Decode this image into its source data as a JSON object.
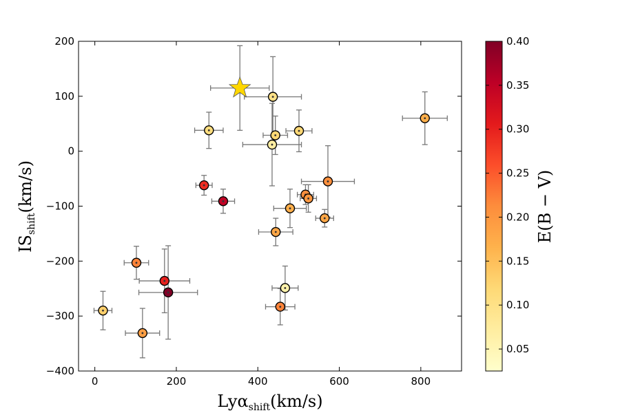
{
  "chart_data": {
    "type": "scatter",
    "title": "",
    "xlabel": {
      "main": "Lyα",
      "sub": "shift",
      "unit": "(km/s)"
    },
    "ylabel": {
      "main": "IS",
      "sub": "shift",
      "unit": "(km/s)"
    },
    "xlim": [
      -40,
      900
    ],
    "ylim": [
      -400,
      200
    ],
    "xticks": [
      0,
      200,
      400,
      600,
      800
    ],
    "yticks": [
      -400,
      -300,
      -200,
      -100,
      0,
      100,
      200
    ],
    "xtick_labels": [
      "0",
      "200",
      "400",
      "600",
      "800"
    ],
    "ytick_labels": [
      "−400",
      "−300",
      "−200",
      "−100",
      "0",
      "100",
      "200"
    ],
    "colorbar": {
      "label": "E(B − V)",
      "range": [
        0.025,
        0.4
      ],
      "ticks": [
        0.05,
        0.1,
        0.15,
        0.2,
        0.25,
        0.3,
        0.35,
        0.4
      ],
      "tick_labels": [
        "0.05",
        "0.10",
        "0.15",
        "0.20",
        "0.25",
        "0.30",
        "0.35",
        "0.40"
      ],
      "colormap": [
        "#ffffcc",
        "#ffeda0",
        "#fed976",
        "#feb24c",
        "#fd8d3c",
        "#fc4e2a",
        "#e31a1c",
        "#bd0026",
        "#800026"
      ]
    },
    "star": {
      "x": 356,
      "y": 115,
      "xerr": 72,
      "yerr": 77,
      "color": "#ffd700"
    },
    "points": [
      {
        "x": 20,
        "y": -290,
        "xerr": 22,
        "yerr": 35,
        "ebv": 0.13
      },
      {
        "x": 102,
        "y": -203,
        "xerr": 30,
        "yerr": 30,
        "ebv": 0.22
      },
      {
        "x": 117,
        "y": -331,
        "xerr": 42,
        "yerr": 45,
        "ebv": 0.19
      },
      {
        "x": 171,
        "y": -236,
        "xerr": 62,
        "yerr": 58,
        "ebv": 0.3
      },
      {
        "x": 180,
        "y": -257,
        "xerr": 72,
        "yerr": 85,
        "ebv": 0.4
      },
      {
        "x": 268,
        "y": -62,
        "xerr": 20,
        "yerr": 18,
        "ebv": 0.29
      },
      {
        "x": 280,
        "y": 38,
        "xerr": 35,
        "yerr": 33,
        "ebv": 0.11
      },
      {
        "x": 315,
        "y": -91,
        "xerr": 28,
        "yerr": 22,
        "ebv": 0.35
      },
      {
        "x": 435,
        "y": 12,
        "xerr": 72,
        "yerr": 75,
        "ebv": 0.07
      },
      {
        "x": 437,
        "y": 99,
        "xerr": 70,
        "yerr": 73,
        "ebv": 0.1
      },
      {
        "x": 443,
        "y": 29,
        "xerr": 30,
        "yerr": 35,
        "ebv": 0.12
      },
      {
        "x": 444,
        "y": -147,
        "xerr": 42,
        "yerr": 25,
        "ebv": 0.18
      },
      {
        "x": 455,
        "y": -283,
        "xerr": 36,
        "yerr": 33,
        "ebv": 0.22
      },
      {
        "x": 467,
        "y": -249,
        "xerr": 32,
        "yerr": 40,
        "ebv": 0.06
      },
      {
        "x": 479,
        "y": -104,
        "xerr": 40,
        "yerr": 35,
        "ebv": 0.17
      },
      {
        "x": 501,
        "y": 37,
        "xerr": 32,
        "yerr": 38,
        "ebv": 0.12
      },
      {
        "x": 517,
        "y": -79,
        "xerr": 20,
        "yerr": 18,
        "ebv": 0.21
      },
      {
        "x": 524,
        "y": -86,
        "xerr": 20,
        "yerr": 25,
        "ebv": 0.2
      },
      {
        "x": 564,
        "y": -122,
        "xerr": 22,
        "yerr": 16,
        "ebv": 0.18
      },
      {
        "x": 572,
        "y": -55,
        "xerr": 65,
        "yerr": 65,
        "ebv": 0.21
      },
      {
        "x": 810,
        "y": 60,
        "xerr": 55,
        "yerr": 48,
        "ebv": 0.17
      }
    ]
  }
}
